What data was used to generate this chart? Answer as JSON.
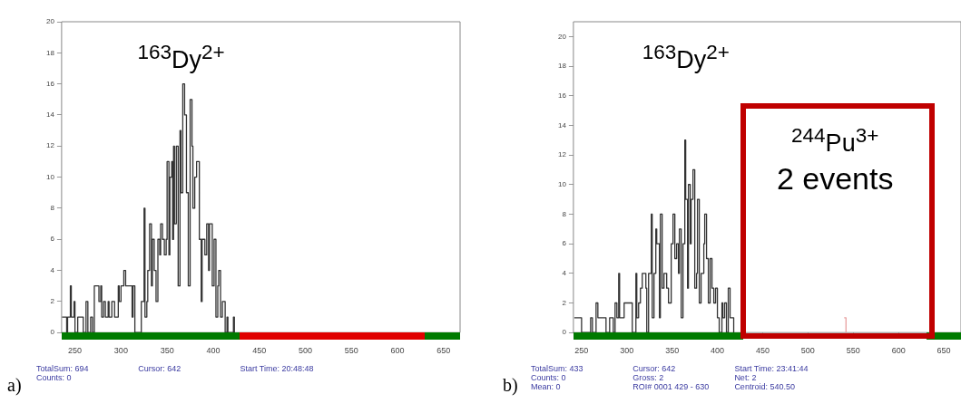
{
  "chart_data": [
    {
      "type": "step",
      "xlim": [
        235.5,
        668
      ],
      "xticks": [
        250,
        300,
        350,
        400,
        450,
        500,
        550,
        600,
        650
      ],
      "ylim": [
        0,
        20
      ],
      "yticks": [
        0,
        2,
        4,
        6,
        8,
        10,
        12,
        14,
        16,
        18,
        20
      ],
      "series": [
        {
          "color": "#333333",
          "x": [
            236,
            241,
            242,
            245,
            246,
            249,
            250,
            253,
            259,
            262,
            264,
            267,
            269,
            271,
            276,
            278,
            279,
            281,
            283,
            286,
            287,
            290,
            293,
            297,
            298,
            300,
            303,
            305,
            312,
            313,
            315,
            322,
            325,
            326,
            328,
            329,
            331,
            333,
            334,
            336,
            338,
            340,
            342,
            343,
            345,
            347,
            349,
            350,
            352,
            353,
            355,
            356,
            357,
            358,
            360,
            362,
            364,
            365,
            367,
            369,
            371,
            373,
            375,
            377,
            378,
            380,
            382,
            385,
            387,
            388,
            391,
            393,
            395,
            396,
            399,
            401,
            403,
            405,
            406,
            408,
            410,
            413,
            415,
            416,
            422,
            423
          ],
          "values": [
            1,
            0,
            1,
            3,
            1,
            2,
            0,
            1,
            0,
            2,
            0,
            1,
            0,
            3,
            2,
            3,
            1,
            2,
            1,
            2,
            1,
            2,
            1,
            3,
            2,
            3,
            4,
            3,
            1,
            3,
            0,
            2,
            8,
            1,
            2,
            4,
            7,
            3,
            6,
            4,
            2,
            6,
            5,
            7,
            6,
            5,
            6,
            11,
            5,
            10,
            11,
            6,
            12,
            7,
            12,
            3,
            13,
            9,
            16,
            14,
            9,
            3,
            15,
            12,
            8,
            10,
            11,
            6,
            2,
            6,
            5,
            7,
            4,
            7,
            3,
            6,
            1,
            3,
            4,
            1,
            2,
            0,
            1,
            0,
            1,
            0
          ]
        }
      ],
      "annotations": [
        "a)",
        "$^{163}$Dy$^{2+}$",
        "TotalSum: 694",
        "Cursor: 642",
        "Start Time: 20:48:48",
        "Counts: 0"
      ]
    },
    {
      "type": "step",
      "xlim": [
        241,
        669
      ],
      "xticks": [
        250,
        300,
        350,
        400,
        450,
        500,
        550,
        600,
        650
      ],
      "ylim": [
        0,
        21
      ],
      "yticks": [
        0,
        2,
        4,
        6,
        8,
        10,
        12,
        14,
        16,
        18,
        20
      ],
      "series": [
        {
          "color": "#333333",
          "x": [
            242,
            250,
            260,
            262,
            266,
            268,
            277,
            281,
            285,
            287,
            289,
            291,
            292,
            294,
            297,
            300,
            306,
            310,
            311,
            313,
            315,
            317,
            321,
            322,
            324,
            327,
            328,
            330,
            332,
            333,
            336,
            337,
            339,
            341,
            344,
            346,
            349,
            351,
            353,
            355,
            357,
            358,
            360,
            362,
            364,
            365,
            367,
            368,
            370,
            371,
            373,
            375,
            377,
            378,
            380,
            382,
            385,
            386,
            388,
            390,
            392,
            394,
            396,
            398,
            400,
            402,
            405,
            406,
            408,
            410,
            412,
            414,
            416,
            418
          ],
          "values": [
            1,
            0,
            1,
            0,
            2,
            1,
            0,
            1,
            0,
            2,
            1,
            4,
            1,
            1,
            2,
            2,
            0,
            4,
            1,
            2,
            3,
            4,
            3,
            0,
            4,
            8,
            1,
            4,
            7,
            6,
            1,
            8,
            3,
            4,
            3,
            2,
            6,
            8,
            5,
            6,
            4,
            7,
            1,
            6,
            13,
            9,
            3,
            10,
            6,
            9,
            11,
            3,
            4,
            9,
            2,
            4,
            6,
            8,
            5,
            2,
            5,
            3,
            2,
            3,
            1,
            0,
            2,
            1,
            2,
            0,
            3,
            1,
            1,
            0
          ]
        },
        {
          "color": "#e8a0a0",
          "x": [
            540,
            542
          ],
          "values": [
            1,
            0
          ]
        }
      ],
      "annotations": [
        "b)",
        "$^{163}$Dy$^{2+}$",
        "$^{244}$Pu$^{3+}$",
        "2 events",
        "TotalSum: 433",
        "Cursor: 642",
        "Start Time: 23:41:44",
        "Counts: 0",
        "Gross: 2",
        "Net: 2",
        "Mean: 0",
        "ROI# 0001 429 - 630",
        "Centroid: 540.50"
      ]
    }
  ]
}
